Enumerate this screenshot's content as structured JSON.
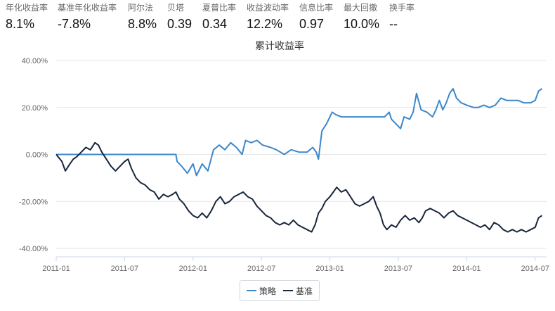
{
  "stats": [
    {
      "label": "年化收益率",
      "value": "8.1%"
    },
    {
      "label": "基准年化收益率",
      "value": "-7.8%"
    },
    {
      "label": "阿尔法",
      "value": "8.8%"
    },
    {
      "label": "贝塔",
      "value": "0.39"
    },
    {
      "label": "夏普比率",
      "value": "0.34"
    },
    {
      "label": "收益波动率",
      "value": "12.2%"
    },
    {
      "label": "信息比率",
      "value": "0.97"
    },
    {
      "label": "最大回撤",
      "value": "10.0%"
    },
    {
      "label": "换手率",
      "value": "--"
    }
  ],
  "colors": {
    "strategy": "#3c87cb",
    "benchmark": "#18263a",
    "grid": "#e6e6e6",
    "axis": "#ccd6eb"
  },
  "legend": {
    "strategy": "策略",
    "benchmark": "基准"
  },
  "chart_data": {
    "type": "line",
    "title": "累计收益率",
    "xlabel": "",
    "ylabel": "",
    "xlim": [
      0,
      43
    ],
    "ylim": [
      -40,
      40
    ],
    "x_ticks": [
      {
        "x": 0,
        "label": "2011-01"
      },
      {
        "x": 6,
        "label": "2011-07"
      },
      {
        "x": 12,
        "label": "2012-01"
      },
      {
        "x": 18,
        "label": "2012-07"
      },
      {
        "x": 24,
        "label": "2013-01"
      },
      {
        "x": 30,
        "label": "2013-07"
      },
      {
        "x": 36,
        "label": "2014-01"
      },
      {
        "x": 42,
        "label": "2014-07"
      }
    ],
    "y_ticks": [
      {
        "y": 40,
        "label": "40.00%"
      },
      {
        "y": 20,
        "label": "20.00%"
      },
      {
        "y": 0,
        "label": "0.00%"
      },
      {
        "y": -20,
        "label": "-20.00%"
      },
      {
        "y": -40,
        "label": "-40.00%"
      }
    ],
    "series": [
      {
        "name": "策略",
        "points": [
          [
            0,
            0
          ],
          [
            5,
            0
          ],
          [
            10.5,
            0
          ],
          [
            10.6,
            -3
          ],
          [
            11,
            -5
          ],
          [
            11.5,
            -8
          ],
          [
            12,
            -4
          ],
          [
            12.3,
            -9
          ],
          [
            12.8,
            -4
          ],
          [
            13.3,
            -7
          ],
          [
            13.8,
            2
          ],
          [
            14.3,
            4
          ],
          [
            14.8,
            2
          ],
          [
            15.3,
            5
          ],
          [
            15.8,
            3
          ],
          [
            16.3,
            0
          ],
          [
            16.6,
            6
          ],
          [
            17.1,
            5
          ],
          [
            17.6,
            6
          ],
          [
            18.1,
            4
          ],
          [
            18.8,
            3
          ],
          [
            19.3,
            2
          ],
          [
            20,
            0
          ],
          [
            20.6,
            2
          ],
          [
            21.3,
            1
          ],
          [
            22,
            1
          ],
          [
            22.5,
            3
          ],
          [
            22.8,
            1
          ],
          [
            23,
            -2
          ],
          [
            23.3,
            10
          ],
          [
            23.7,
            13
          ],
          [
            24,
            16
          ],
          [
            24.2,
            18
          ],
          [
            24.5,
            17
          ],
          [
            25,
            16
          ],
          [
            26,
            16
          ],
          [
            27,
            16
          ],
          [
            28,
            16
          ],
          [
            28.8,
            16
          ],
          [
            29.2,
            18
          ],
          [
            29.4,
            15
          ],
          [
            29.8,
            13
          ],
          [
            30.2,
            11
          ],
          [
            30.5,
            16
          ],
          [
            31,
            15
          ],
          [
            31.3,
            18
          ],
          [
            31.6,
            26
          ],
          [
            32,
            19
          ],
          [
            32.5,
            18
          ],
          [
            33,
            16
          ],
          [
            33.3,
            19
          ],
          [
            33.6,
            23
          ],
          [
            33.9,
            19
          ],
          [
            34.2,
            22
          ],
          [
            34.5,
            26
          ],
          [
            34.8,
            28
          ],
          [
            35.1,
            24
          ],
          [
            35.5,
            22
          ],
          [
            36,
            21
          ],
          [
            36.6,
            20
          ],
          [
            37,
            20
          ],
          [
            37.5,
            21
          ],
          [
            38,
            20
          ],
          [
            38.5,
            21
          ],
          [
            39,
            24
          ],
          [
            39.5,
            23
          ],
          [
            40,
            23
          ],
          [
            40.5,
            23
          ],
          [
            41,
            22
          ],
          [
            41.6,
            22
          ],
          [
            42,
            23
          ],
          [
            42.3,
            27
          ],
          [
            42.6,
            28
          ]
        ]
      },
      {
        "name": "基准",
        "points": [
          [
            0,
            0
          ],
          [
            0.5,
            -3
          ],
          [
            0.8,
            -7
          ],
          [
            1.2,
            -4
          ],
          [
            1.5,
            -2
          ],
          [
            1.8,
            -1
          ],
          [
            2.2,
            1
          ],
          [
            2.6,
            3
          ],
          [
            3,
            2
          ],
          [
            3.4,
            5
          ],
          [
            3.7,
            4
          ],
          [
            4,
            1
          ],
          [
            4.4,
            -2
          ],
          [
            4.8,
            -5
          ],
          [
            5.2,
            -7
          ],
          [
            5.6,
            -5
          ],
          [
            6,
            -3
          ],
          [
            6.3,
            -2
          ],
          [
            6.6,
            -6
          ],
          [
            7,
            -10
          ],
          [
            7.4,
            -12
          ],
          [
            7.8,
            -13
          ],
          [
            8.2,
            -15
          ],
          [
            8.6,
            -16
          ],
          [
            9,
            -19
          ],
          [
            9.4,
            -17
          ],
          [
            9.8,
            -18
          ],
          [
            10.2,
            -17
          ],
          [
            10.5,
            -16
          ],
          [
            10.8,
            -19
          ],
          [
            11.2,
            -21
          ],
          [
            11.6,
            -24
          ],
          [
            12,
            -26
          ],
          [
            12.4,
            -27
          ],
          [
            12.8,
            -25
          ],
          [
            13.2,
            -27
          ],
          [
            13.6,
            -24
          ],
          [
            14,
            -20
          ],
          [
            14.4,
            -18
          ],
          [
            14.8,
            -21
          ],
          [
            15.2,
            -20
          ],
          [
            15.6,
            -18
          ],
          [
            16,
            -17
          ],
          [
            16.4,
            -16
          ],
          [
            16.8,
            -18
          ],
          [
            17.2,
            -19
          ],
          [
            17.6,
            -22
          ],
          [
            18,
            -24
          ],
          [
            18.4,
            -26
          ],
          [
            18.8,
            -27
          ],
          [
            19.2,
            -29
          ],
          [
            19.6,
            -30
          ],
          [
            20,
            -29
          ],
          [
            20.4,
            -30
          ],
          [
            20.8,
            -28
          ],
          [
            21.2,
            -30
          ],
          [
            21.6,
            -31
          ],
          [
            22,
            -32
          ],
          [
            22.4,
            -33
          ],
          [
            22.7,
            -30
          ],
          [
            23,
            -25
          ],
          [
            23.3,
            -23
          ],
          [
            23.6,
            -20
          ],
          [
            24,
            -18
          ],
          [
            24.3,
            -16
          ],
          [
            24.6,
            -14
          ],
          [
            25,
            -16
          ],
          [
            25.4,
            -15
          ],
          [
            25.8,
            -18
          ],
          [
            26.2,
            -21
          ],
          [
            26.6,
            -22
          ],
          [
            27,
            -21
          ],
          [
            27.4,
            -20
          ],
          [
            27.8,
            -18
          ],
          [
            28.1,
            -22
          ],
          [
            28.4,
            -25
          ],
          [
            28.7,
            -30
          ],
          [
            29,
            -32
          ],
          [
            29.4,
            -30
          ],
          [
            29.8,
            -31
          ],
          [
            30.2,
            -28
          ],
          [
            30.6,
            -26
          ],
          [
            31,
            -28
          ],
          [
            31.4,
            -27
          ],
          [
            31.8,
            -29
          ],
          [
            32.1,
            -27
          ],
          [
            32.4,
            -24
          ],
          [
            32.8,
            -23
          ],
          [
            33.2,
            -24
          ],
          [
            33.6,
            -25
          ],
          [
            34,
            -27
          ],
          [
            34.4,
            -25
          ],
          [
            34.8,
            -24
          ],
          [
            35.2,
            -26
          ],
          [
            35.6,
            -27
          ],
          [
            36,
            -28
          ],
          [
            36.4,
            -29
          ],
          [
            36.8,
            -30
          ],
          [
            37.2,
            -31
          ],
          [
            37.6,
            -30
          ],
          [
            38,
            -32
          ],
          [
            38.4,
            -29
          ],
          [
            38.8,
            -30
          ],
          [
            39.2,
            -32
          ],
          [
            39.6,
            -33
          ],
          [
            40,
            -32
          ],
          [
            40.4,
            -33
          ],
          [
            40.8,
            -32
          ],
          [
            41.2,
            -33
          ],
          [
            41.6,
            -32
          ],
          [
            42,
            -31
          ],
          [
            42.3,
            -27
          ],
          [
            42.6,
            -26
          ]
        ]
      }
    ]
  }
}
